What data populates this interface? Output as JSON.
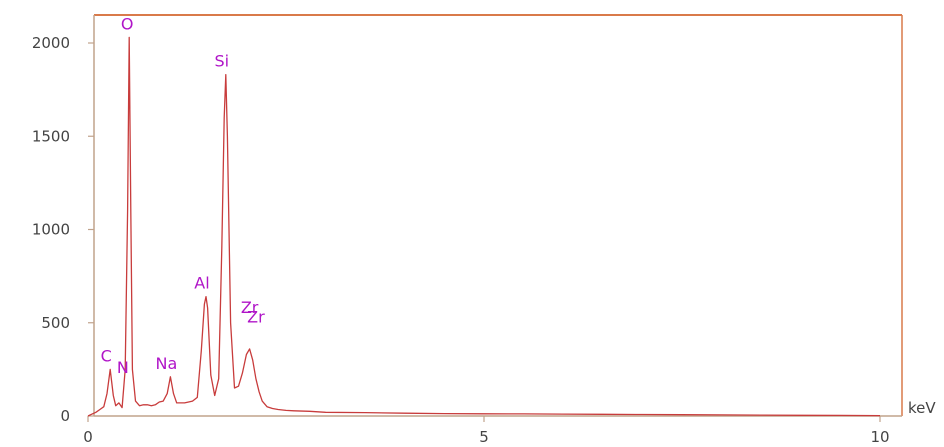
{
  "chart_data": {
    "type": "line",
    "xlabel": "keV",
    "ylabel": "",
    "xlim": [
      0,
      10
    ],
    "ylim": [
      0,
      2000
    ],
    "x_ticks": [
      0,
      5,
      10
    ],
    "y_ticks": [
      0,
      500,
      1000,
      1500,
      2000
    ],
    "grid": false,
    "colors": {
      "line": "#c83c3c",
      "frame": "#d97a4a",
      "axis": "#c0a38c",
      "labels": "#b015c8"
    },
    "peaks": [
      {
        "element": "C",
        "energy": 0.28,
        "counts": 250
      },
      {
        "element": "N",
        "energy": 0.39,
        "counts": 70
      },
      {
        "element": "O",
        "energy": 0.52,
        "counts": 2030
      },
      {
        "element": "Na",
        "energy": 1.04,
        "counts": 210
      },
      {
        "element": "Al",
        "energy": 1.49,
        "counts": 640
      },
      {
        "element": "Si",
        "energy": 1.74,
        "counts": 1830
      },
      {
        "element": "Zr",
        "energy": 2.04,
        "counts": 360
      },
      {
        "element": "Zr",
        "energy": 2.12,
        "counts": 200
      }
    ],
    "series": [
      {
        "x": [
          0.0,
          0.05,
          0.1,
          0.15,
          0.2,
          0.24,
          0.28,
          0.32,
          0.35,
          0.39,
          0.43,
          0.47,
          0.5,
          0.52,
          0.54,
          0.56,
          0.6,
          0.65,
          0.7,
          0.75,
          0.8,
          0.85,
          0.9,
          0.95,
          1.0,
          1.04,
          1.08,
          1.12,
          1.17,
          1.22,
          1.27,
          1.32,
          1.38,
          1.43,
          1.47,
          1.49,
          1.51,
          1.55,
          1.6,
          1.65,
          1.69,
          1.72,
          1.74,
          1.76,
          1.8,
          1.85,
          1.9,
          1.95,
          2.0,
          2.04,
          2.08,
          2.12,
          2.16,
          2.2,
          2.26,
          2.33,
          2.4,
          2.5,
          2.6,
          2.8,
          3.0,
          3.5,
          4.0,
          4.5,
          5.0,
          5.5,
          6.0,
          6.5,
          7.0,
          7.5,
          8.0,
          8.5,
          9.0,
          9.5,
          10.0
        ],
        "y": [
          0,
          10,
          20,
          35,
          50,
          120,
          250,
          110,
          55,
          70,
          45,
          250,
          1100,
          2030,
          1100,
          250,
          80,
          55,
          60,
          60,
          55,
          60,
          75,
          80,
          120,
          210,
          120,
          70,
          70,
          70,
          75,
          80,
          100,
          350,
          600,
          640,
          580,
          220,
          110,
          200,
          900,
          1600,
          1830,
          1500,
          500,
          150,
          160,
          230,
          330,
          360,
          300,
          200,
          130,
          80,
          50,
          40,
          35,
          30,
          28,
          25,
          20,
          18,
          15,
          13,
          12,
          11,
          10,
          9,
          8,
          7,
          6,
          5,
          4,
          3,
          2
        ]
      }
    ]
  }
}
